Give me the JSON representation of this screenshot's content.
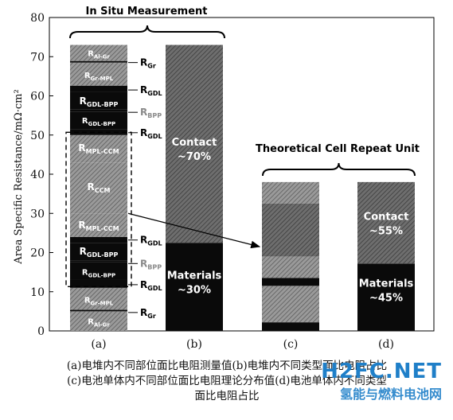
{
  "chart_data": {
    "type": "bar",
    "ylabel": "Area Specific Resistance/mΩ·cm²",
    "ylim": [
      0,
      80
    ],
    "yticks": [
      0,
      10,
      20,
      30,
      40,
      50,
      60,
      70,
      80
    ],
    "categories": [
      "(a)",
      "(b)",
      "(c)",
      "(d)"
    ],
    "annotations": {
      "in_situ": "In Situ Measurement",
      "theoretical": "Theoretical Cell Repeat Unit"
    },
    "stacks": [
      {
        "category": "(a)",
        "segments": [
          {
            "label": "R_Al-Gr",
            "sub": "Al-Gr",
            "from": 0,
            "to": 5,
            "pattern": "hatch"
          },
          {
            "label": "R_Gr",
            "sub": "Gr",
            "from": 5,
            "to": 5.4,
            "pattern": "black"
          },
          {
            "label": "R_Gr-MPL",
            "sub": "Gr-MPL",
            "from": 5.4,
            "to": 11,
            "pattern": "hatch"
          },
          {
            "label": "R_GDL",
            "sub": "GDL",
            "from": 11,
            "to": 13,
            "pattern": "black"
          },
          {
            "label": "R_GDL-BPP",
            "sub": "GDL-BPP",
            "from": 13,
            "to": 17.5,
            "pattern": "black"
          },
          {
            "label": "R_BPP",
            "sub": "BPP",
            "from": 17.5,
            "to": 18,
            "pattern": "black"
          },
          {
            "label": "R_GDL-BPP",
            "sub": "GDL-BPP",
            "from": 18,
            "to": 22.5,
            "pattern": "black"
          },
          {
            "label": "R_GDL",
            "sub": "GDL",
            "from": 22.5,
            "to": 24,
            "pattern": "black"
          },
          {
            "label": "R_MPL-CCM",
            "sub": "MPL-CCM",
            "from": 24,
            "to": 30,
            "pattern": "hatch"
          },
          {
            "label": "R_CCM",
            "sub": "CCM",
            "from": 30,
            "to": 43,
            "pattern": "hatch"
          },
          {
            "label": "R_MPL-CCM",
            "sub": "MPL-CCM",
            "from": 43,
            "to": 50,
            "pattern": "hatch"
          },
          {
            "label": "R_GDL",
            "sub": "GDL",
            "from": 50,
            "to": 51.5,
            "pattern": "black"
          },
          {
            "label": "R_GDL-BPP",
            "sub": "GDL-BPP",
            "from": 51.5,
            "to": 56,
            "pattern": "black"
          },
          {
            "label": "R_BPP",
            "sub": "BPP",
            "from": 56,
            "to": 56.6,
            "pattern": "black"
          },
          {
            "label": "R_GDL-BPP",
            "sub": "GDL-BPP",
            "from": 56.6,
            "to": 61,
            "pattern": "black"
          },
          {
            "label": "R_GDL",
            "sub": "GDL",
            "from": 61,
            "to": 62.6,
            "pattern": "black"
          },
          {
            "label": "R_Gr-MPL",
            "sub": "Gr-MPL",
            "from": 62.6,
            "to": 68.5,
            "pattern": "hatch"
          },
          {
            "label": "R_Gr",
            "sub": "Gr",
            "from": 68.5,
            "to": 68.9,
            "pattern": "black"
          },
          {
            "label": "R_Al-Gr",
            "sub": "Al-Gr",
            "from": 68.9,
            "to": 73,
            "pattern": "hatch"
          }
        ]
      },
      {
        "category": "(b)",
        "segments": [
          {
            "label": "Materials ~30%",
            "from": 0,
            "to": 22.5,
            "pattern": "black"
          },
          {
            "label": "Contact ~70%",
            "from": 22.5,
            "to": 73,
            "pattern": "dark"
          }
        ]
      },
      {
        "category": "(c)",
        "segments": [
          {
            "from": 0,
            "to": 2.2,
            "pattern": "black"
          },
          {
            "from": 2.2,
            "to": 11.5,
            "pattern": "hatch"
          },
          {
            "from": 11.5,
            "to": 13.5,
            "pattern": "black"
          },
          {
            "from": 13.5,
            "to": 19,
            "pattern": "hatch"
          },
          {
            "from": 19,
            "to": 32.5,
            "pattern": "dark"
          },
          {
            "from": 32.5,
            "to": 38,
            "pattern": "hatch"
          }
        ]
      },
      {
        "category": "(d)",
        "segments": [
          {
            "label": "Materials ~45%",
            "from": 0,
            "to": 17.2,
            "pattern": "black"
          },
          {
            "label": "Contact ~55%",
            "from": 17.2,
            "to": 38,
            "pattern": "dark"
          }
        ]
      }
    ],
    "bar_texts": {
      "contact_b": [
        "Contact",
        "~70%"
      ],
      "materials_b": [
        "Materials",
        "~30%"
      ],
      "contact_d": [
        "Contact",
        "~55%"
      ],
      "materials_d": [
        "Materials",
        "~45%"
      ]
    },
    "right_labels": [
      {
        "sub": "Gr",
        "y": 68.5,
        "gray": false
      },
      {
        "sub": "GDL",
        "y": 61.5,
        "gray": false
      },
      {
        "sub": "BPP",
        "y": 55.8,
        "gray": true
      },
      {
        "sub": "GDL",
        "y": 50.6,
        "gray": false
      },
      {
        "sub": "GDL",
        "y": 23.2,
        "gray": false
      },
      {
        "sub": "BPP",
        "y": 17.2,
        "gray": true
      },
      {
        "sub": "GDL",
        "y": 11.8,
        "gray": false
      },
      {
        "sub": "Gr",
        "y": 4.7,
        "gray": false
      }
    ],
    "inner_labels": [
      {
        "sub": "Al-Gr",
        "y": 70.8,
        "size": "small"
      },
      {
        "sub": "Gr-MPL",
        "y": 65.2,
        "size": "small"
      },
      {
        "sub": "GDL-BPP",
        "y": 58.5,
        "size": "big"
      },
      {
        "sub": "GDL-BPP",
        "y": 53.6,
        "size": "small"
      },
      {
        "sub": "MPL-CCM",
        "y": 46.5,
        "size": "big"
      },
      {
        "sub": "CCM",
        "y": 36.5,
        "size": "big"
      },
      {
        "sub": "MPL-CCM",
        "y": 26.8,
        "size": "big"
      },
      {
        "sub": "GDL-BPP",
        "y": 20.1,
        "size": "big"
      },
      {
        "sub": "GDL-BPP",
        "y": 14.9,
        "size": "small"
      },
      {
        "sub": "Gr-MPL",
        "y": 7.8,
        "size": "small"
      },
      {
        "sub": "Al-Gr",
        "y": 2.3,
        "size": "small"
      }
    ]
  },
  "caption": {
    "line1": "(a)电堆内不同部位面比电阻测量值(b)电堆内不同类型面比电阻占比",
    "line2": "(c)电池单体内不同部位面比电阻理论分布值(d)电池单体内不同类型",
    "line3": "面比电阻占比"
  },
  "watermark": {
    "big": "H2FC.NET",
    "small": "氢能与燃料电池网"
  }
}
